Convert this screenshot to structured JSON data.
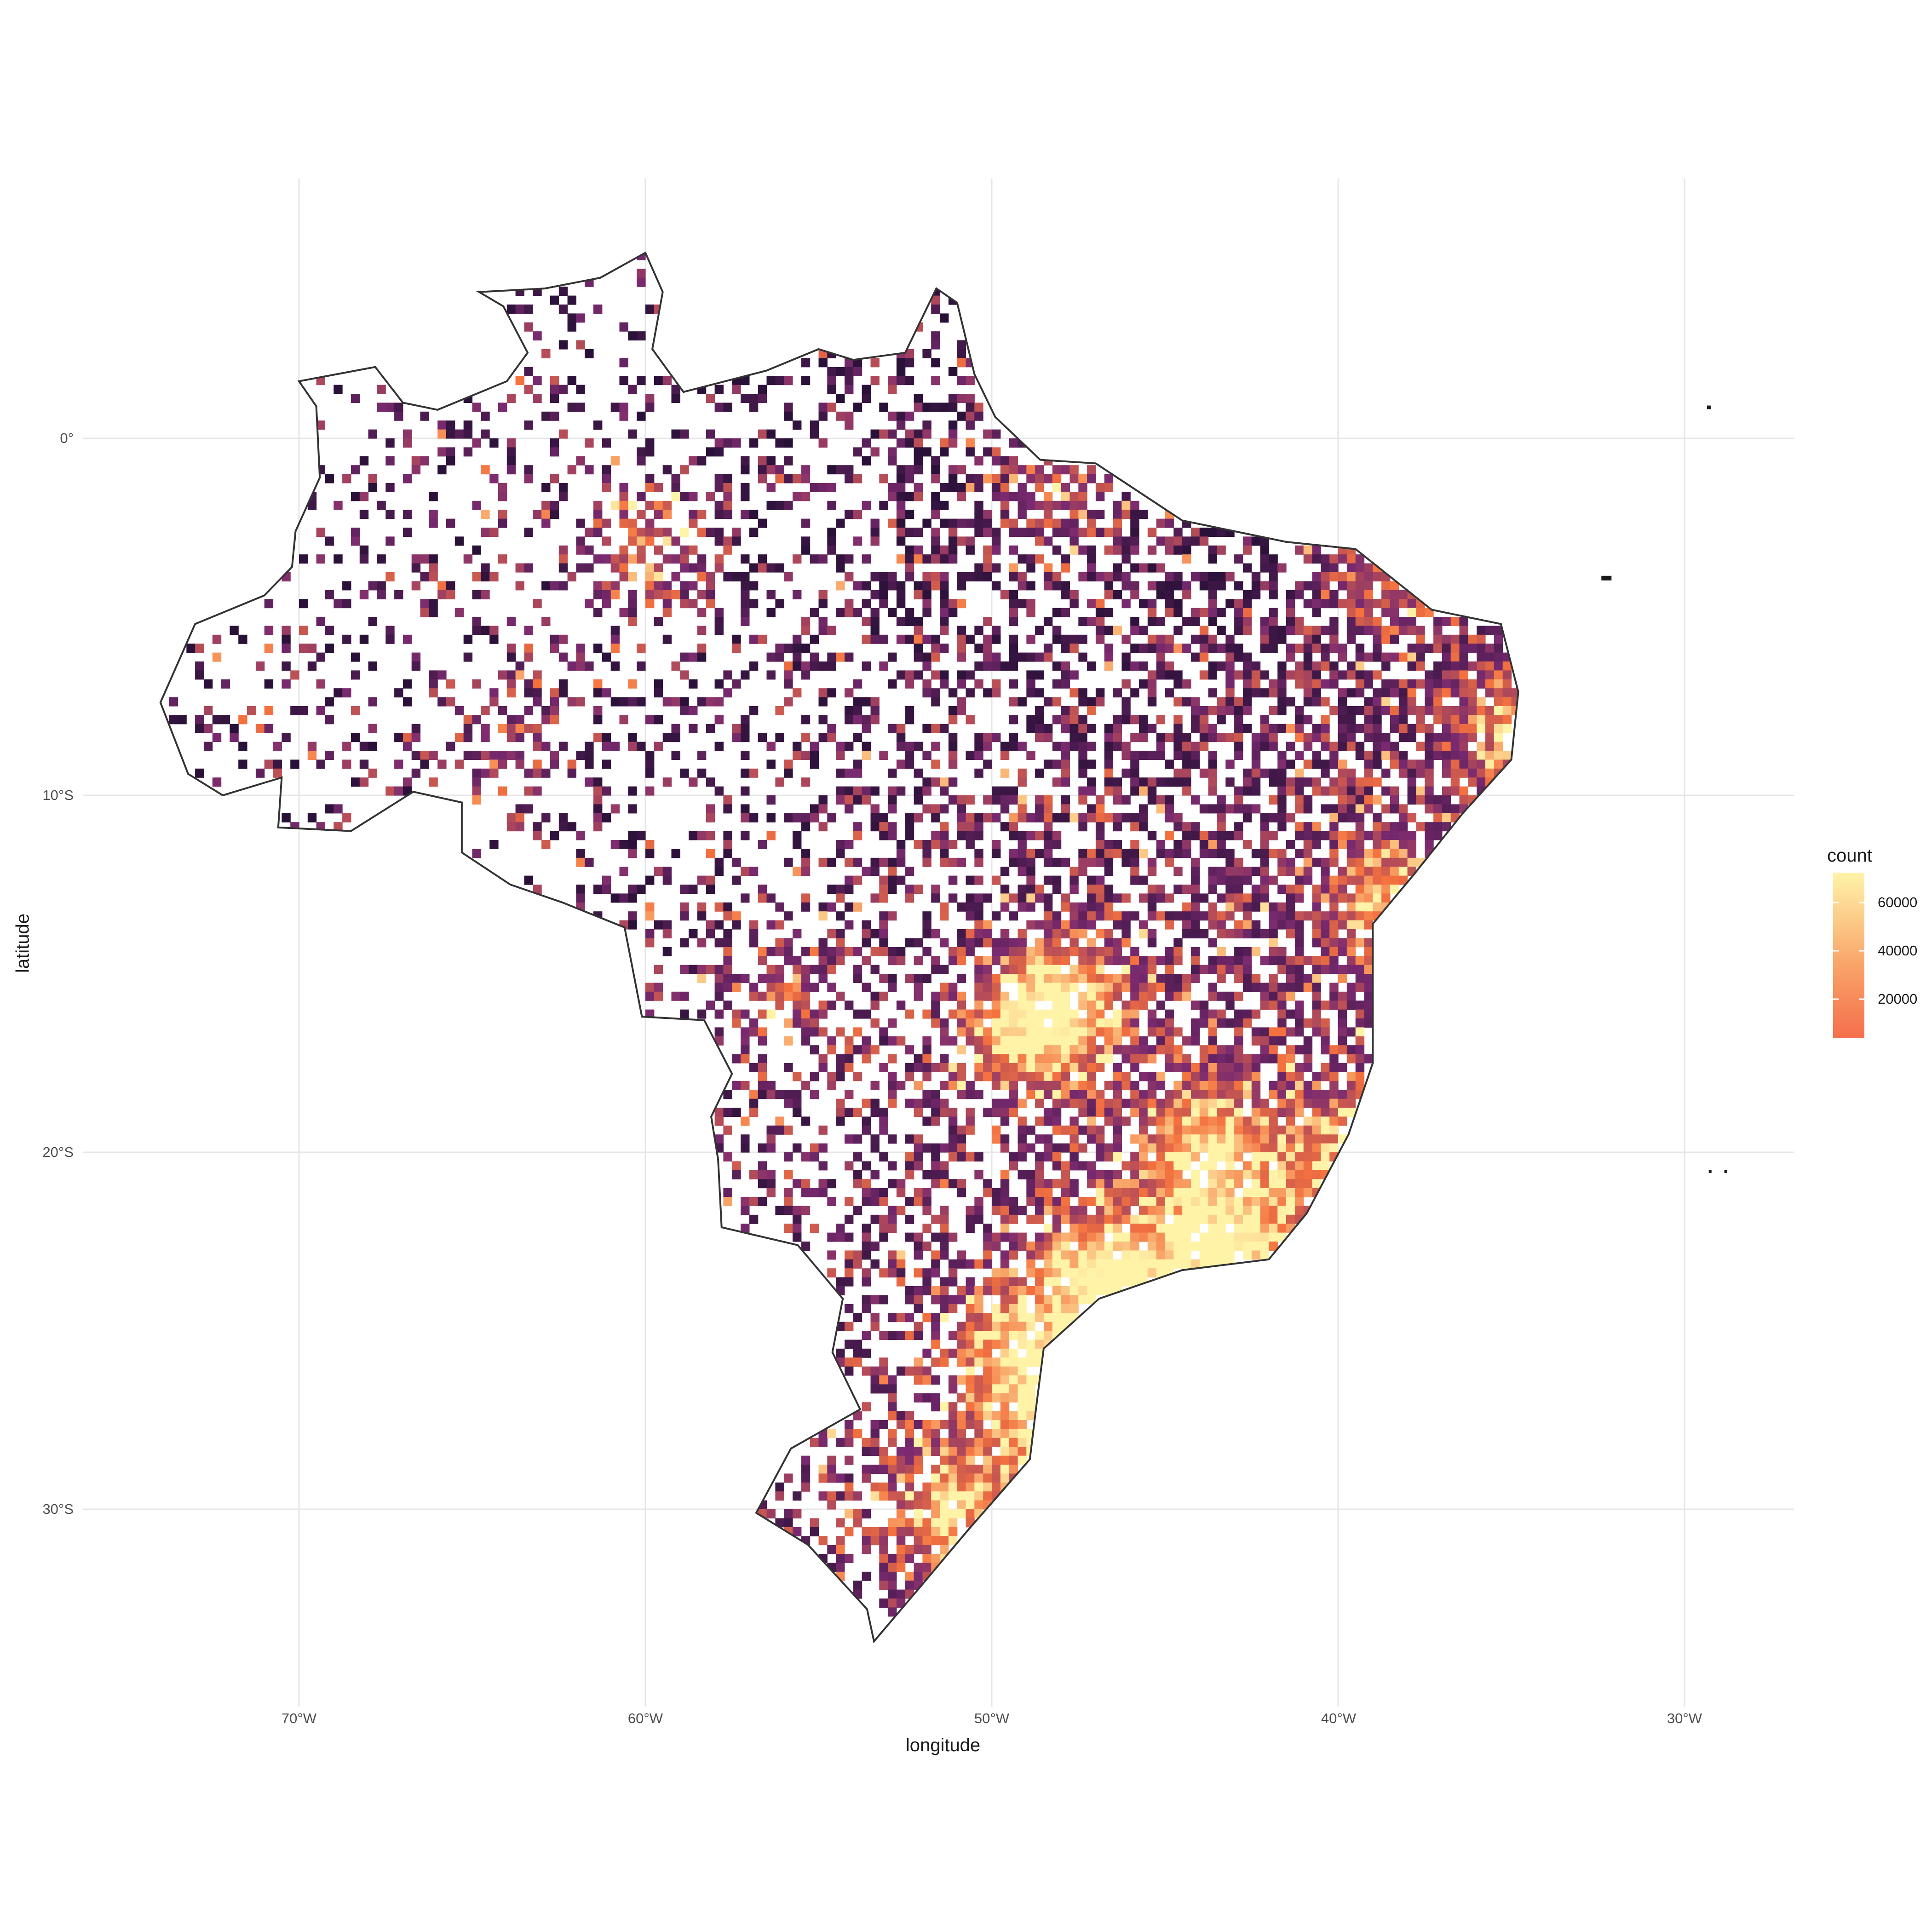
{
  "axes": {
    "xlabel": "longitude",
    "ylabel": "latitude",
    "x_ticks": [
      "70°W",
      "60°W",
      "50°W",
      "40°W",
      "30°W"
    ],
    "y_ticks": [
      "0°",
      "10°S",
      "20°S",
      "30°S"
    ]
  },
  "legend": {
    "title": "count",
    "labels": [
      "60000",
      "40000",
      "20000"
    ]
  },
  "colors": {
    "low": "#1a0c2e",
    "mid": "#7a2a6f",
    "high": "#f4713f",
    "max": "#fff3a8",
    "border": "#333333",
    "grid": "#e6e6e6"
  },
  "chart_data": {
    "type": "heatmap",
    "title": "",
    "xlabel": "longitude",
    "ylabel": "latitude",
    "xlim": [
      -75.5,
      -26.5
    ],
    "ylim": [
      -35,
      7
    ],
    "grid": true,
    "legend_position": "right",
    "color_scale": {
      "name": "count",
      "range": [
        0,
        72000
      ],
      "breaks": [
        20000,
        40000,
        60000
      ]
    },
    "hotspots": [
      {
        "lon": -60.0,
        "lat": -3.1,
        "value": 40000
      },
      {
        "lon": -48.2,
        "lat": -1.4,
        "value": 30000
      },
      {
        "lon": -38.5,
        "lat": -3.7,
        "value": 38000
      },
      {
        "lon": -34.9,
        "lat": -8.0,
        "value": 45000
      },
      {
        "lon": -38.5,
        "lat": -13.0,
        "value": 48000
      },
      {
        "lon": -47.9,
        "lat": -15.8,
        "value": 62000
      },
      {
        "lon": -49.3,
        "lat": -16.7,
        "value": 42000
      },
      {
        "lon": -43.9,
        "lat": -19.9,
        "value": 55000
      },
      {
        "lon": -43.2,
        "lat": -22.9,
        "value": 66000
      },
      {
        "lon": -46.6,
        "lat": -23.5,
        "value": 72000
      },
      {
        "lon": -49.3,
        "lat": -25.4,
        "value": 50000
      },
      {
        "lon": -48.5,
        "lat": -27.6,
        "value": 46000
      },
      {
        "lon": -51.2,
        "lat": -30.0,
        "value": 48000
      },
      {
        "lon": -40.3,
        "lat": -20.3,
        "value": 36000
      },
      {
        "lon": -56.1,
        "lat": -15.6,
        "value": 28000
      },
      {
        "lon": -63.9,
        "lat": -8.8,
        "value": 25000
      }
    ]
  }
}
